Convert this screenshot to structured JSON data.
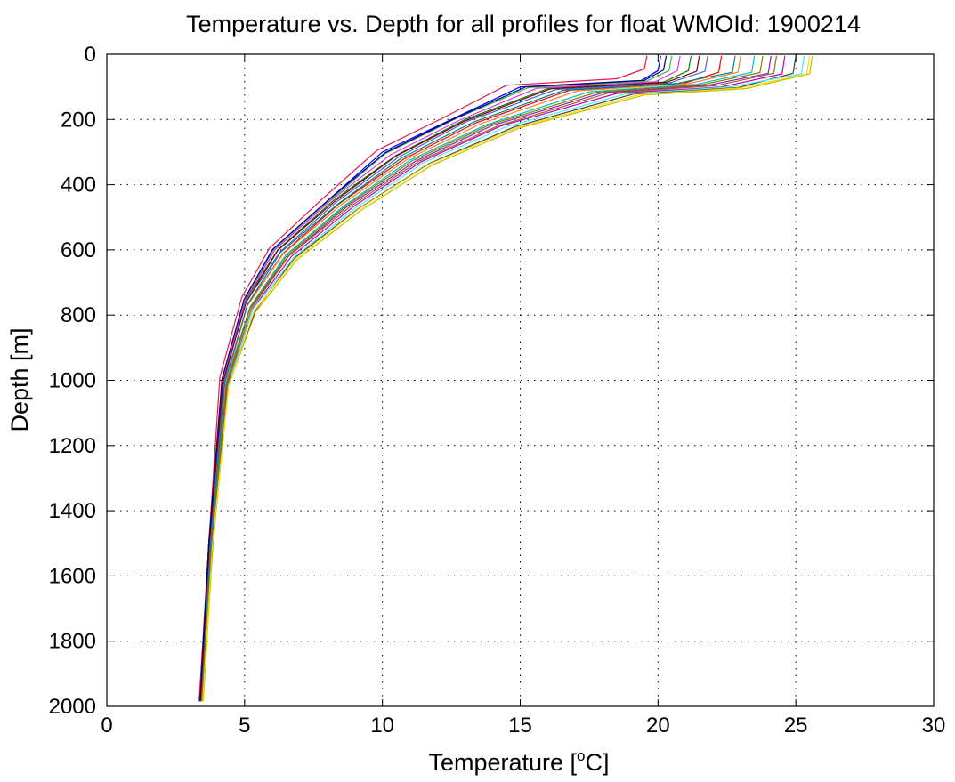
{
  "chart_data": {
    "type": "line",
    "title": "Temperature vs. Depth for all profiles for float WMOId: 1900214",
    "xlabel": {
      "prefix": "Temperature [",
      "superscript": "o",
      "suffix": "C]"
    },
    "ylabel": "Depth [m]",
    "xlim": [
      0,
      30
    ],
    "ylim": [
      0,
      2000
    ],
    "y_reversed": true,
    "grid": true,
    "grid_style": "dotted",
    "x_ticks": [
      0,
      5,
      10,
      15,
      20,
      25,
      30
    ],
    "x_tick_labels": [
      "0",
      "5",
      "10",
      "15",
      "20",
      "25",
      "30"
    ],
    "y_ticks": [
      0,
      200,
      400,
      600,
      800,
      1000,
      1200,
      1400,
      1600,
      1800,
      2000
    ],
    "y_tick_labels": [
      "0",
      "200",
      "400",
      "600",
      "800",
      "1000",
      "1200",
      "1400",
      "1600",
      "1800",
      "2000"
    ],
    "series_colors": [
      "#0000ff",
      "#008000",
      "#ff0000",
      "#00bfbf",
      "#bf00bf",
      "#bfbf00",
      "#404040",
      "#e6194b",
      "#3cb44b",
      "#4363d8",
      "#f58231",
      "#911eb4",
      "#46f0f0",
      "#f032e6",
      "#008080",
      "#9a6324",
      "#800000",
      "#808000",
      "#000075",
      "#ffd700"
    ],
    "series": [
      {
        "x": [
          20.1,
          20.0,
          19.4,
          15.0,
          12.5,
          10.0,
          8.0,
          6.0,
          5.0,
          4.2,
          3.7,
          3.4
        ],
        "y": [
          5,
          50,
          80,
          100,
          200,
          300,
          450,
          600,
          750,
          1000,
          1500,
          1985
        ]
      },
      {
        "x": [
          21.2,
          21.1,
          20.2,
          16.0,
          13.0,
          10.5,
          8.2,
          6.2,
          5.0,
          4.2,
          3.7,
          3.4
        ],
        "y": [
          5,
          50,
          85,
          105,
          200,
          310,
          450,
          600,
          760,
          1000,
          1500,
          1980
        ]
      },
      {
        "x": [
          22.3,
          22.2,
          20.9,
          16.8,
          13.4,
          10.8,
          8.4,
          6.4,
          5.1,
          4.3,
          3.8,
          3.45
        ],
        "y": [
          5,
          55,
          90,
          110,
          210,
          320,
          460,
          610,
          770,
          1010,
          1500,
          1985
        ]
      },
      {
        "x": [
          23.5,
          23.4,
          21.4,
          17.5,
          13.8,
          11.0,
          8.6,
          6.5,
          5.2,
          4.3,
          3.8,
          3.4
        ],
        "y": [
          5,
          55,
          92,
          115,
          215,
          325,
          465,
          615,
          775,
          1010,
          1500,
          1980
        ]
      },
      {
        "x": [
          24.6,
          24.5,
          22.3,
          18.5,
          14.3,
          11.4,
          8.9,
          6.7,
          5.3,
          4.4,
          3.8,
          3.45
        ],
        "y": [
          5,
          60,
          100,
          120,
          220,
          330,
          470,
          620,
          780,
          1020,
          1500,
          1985
        ]
      },
      {
        "x": [
          25.6,
          25.5,
          23.2,
          19.5,
          15.0,
          11.8,
          9.2,
          6.9,
          5.4,
          4.4,
          3.85,
          3.5
        ],
        "y": [
          5,
          60,
          105,
          125,
          225,
          340,
          480,
          630,
          790,
          1020,
          1500,
          1985
        ]
      },
      {
        "x": [
          25.0,
          24.9,
          22.9,
          19.1,
          14.8,
          11.7,
          9.1,
          6.8,
          5.4,
          4.4,
          3.85,
          3.45
        ],
        "y": [
          5,
          58,
          102,
          122,
          222,
          335,
          475,
          625,
          785,
          1015,
          1500,
          1980
        ]
      },
      {
        "x": [
          19.6,
          19.5,
          18.5,
          14.5,
          12.2,
          9.8,
          7.8,
          5.9,
          4.9,
          4.1,
          3.7,
          3.35
        ],
        "y": [
          5,
          45,
          75,
          95,
          195,
          295,
          445,
          595,
          745,
          990,
          1500,
          1985
        ]
      },
      {
        "x": [
          20.5,
          20.4,
          19.6,
          15.3,
          12.6,
          10.1,
          8.1,
          6.1,
          5.0,
          4.2,
          3.7,
          3.4
        ],
        "y": [
          5,
          50,
          82,
          102,
          200,
          305,
          448,
          598,
          755,
          995,
          1500,
          1980
        ]
      },
      {
        "x": [
          21.8,
          21.7,
          20.4,
          16.3,
          13.1,
          10.6,
          8.3,
          6.3,
          5.0,
          4.25,
          3.75,
          3.4
        ],
        "y": [
          5,
          52,
          88,
          108,
          205,
          315,
          455,
          605,
          765,
          1005,
          1500,
          1985
        ]
      },
      {
        "x": [
          23.0,
          22.9,
          21.1,
          17.1,
          13.6,
          10.9,
          8.5,
          6.4,
          5.1,
          4.3,
          3.8,
          3.42
        ],
        "y": [
          5,
          55,
          90,
          112,
          212,
          322,
          462,
          612,
          772,
          1008,
          1500,
          1982
        ]
      },
      {
        "x": [
          24.1,
          24.0,
          21.8,
          18.0,
          14.0,
          11.2,
          8.7,
          6.6,
          5.2,
          4.35,
          3.8,
          3.45
        ],
        "y": [
          5,
          58,
          95,
          118,
          218,
          328,
          468,
          618,
          778,
          1012,
          1500,
          1985
        ]
      },
      {
        "x": [
          25.3,
          25.2,
          22.6,
          18.8,
          14.5,
          11.5,
          9.0,
          6.8,
          5.3,
          4.4,
          3.82,
          3.48
        ],
        "y": [
          5,
          60,
          100,
          122,
          222,
          332,
          472,
          622,
          782,
          1018,
          1500,
          1983
        ]
      },
      {
        "x": [
          20.8,
          20.7,
          19.9,
          15.6,
          12.8,
          10.3,
          8.1,
          6.1,
          5.0,
          4.2,
          3.7,
          3.4
        ],
        "y": [
          5,
          50,
          84,
          104,
          202,
          308,
          450,
          600,
          758,
          998,
          1500,
          1985
        ]
      },
      {
        "x": [
          22.8,
          22.7,
          20.7,
          16.6,
          13.3,
          10.7,
          8.4,
          6.3,
          5.1,
          4.28,
          3.78,
          3.42
        ],
        "y": [
          5,
          55,
          89,
          110,
          208,
          318,
          458,
          608,
          768,
          1006,
          1500,
          1980
        ]
      },
      {
        "x": [
          24.3,
          24.2,
          22.1,
          18.2,
          14.2,
          11.3,
          8.8,
          6.6,
          5.25,
          4.38,
          3.8,
          3.45
        ],
        "y": [
          5,
          58,
          96,
          119,
          219,
          329,
          469,
          619,
          779,
          1014,
          1500,
          1985
        ]
      },
      {
        "x": [
          21.5,
          21.4,
          20.3,
          16.1,
          13.0,
          10.5,
          8.25,
          6.2,
          5.05,
          4.22,
          3.72,
          3.4
        ],
        "y": [
          5,
          52,
          86,
          106,
          204,
          312,
          452,
          602,
          762,
          1002,
          1500,
          1982
        ]
      },
      {
        "x": [
          23.8,
          23.7,
          21.6,
          17.8,
          13.9,
          11.1,
          8.65,
          6.55,
          5.2,
          4.33,
          3.8,
          3.44
        ],
        "y": [
          5,
          56,
          93,
          116,
          216,
          326,
          466,
          616,
          776,
          1011,
          1500,
          1985
        ]
      },
      {
        "x": [
          20.3,
          20.2,
          19.5,
          15.2,
          12.6,
          10.1,
          8.05,
          6.05,
          4.98,
          4.18,
          3.7,
          3.38
        ],
        "y": [
          5,
          48,
          80,
          100,
          198,
          302,
          446,
          596,
          752,
          996,
          1500,
          1984
        ]
      },
      {
        "x": [
          25.5,
          25.4,
          23.0,
          19.3,
          14.9,
          11.7,
          9.1,
          6.85,
          5.35,
          4.42,
          3.84,
          3.48
        ],
        "y": [
          5,
          60,
          103,
          124,
          224,
          337,
          477,
          627,
          787,
          1019,
          1500,
          1986
        ]
      }
    ]
  }
}
